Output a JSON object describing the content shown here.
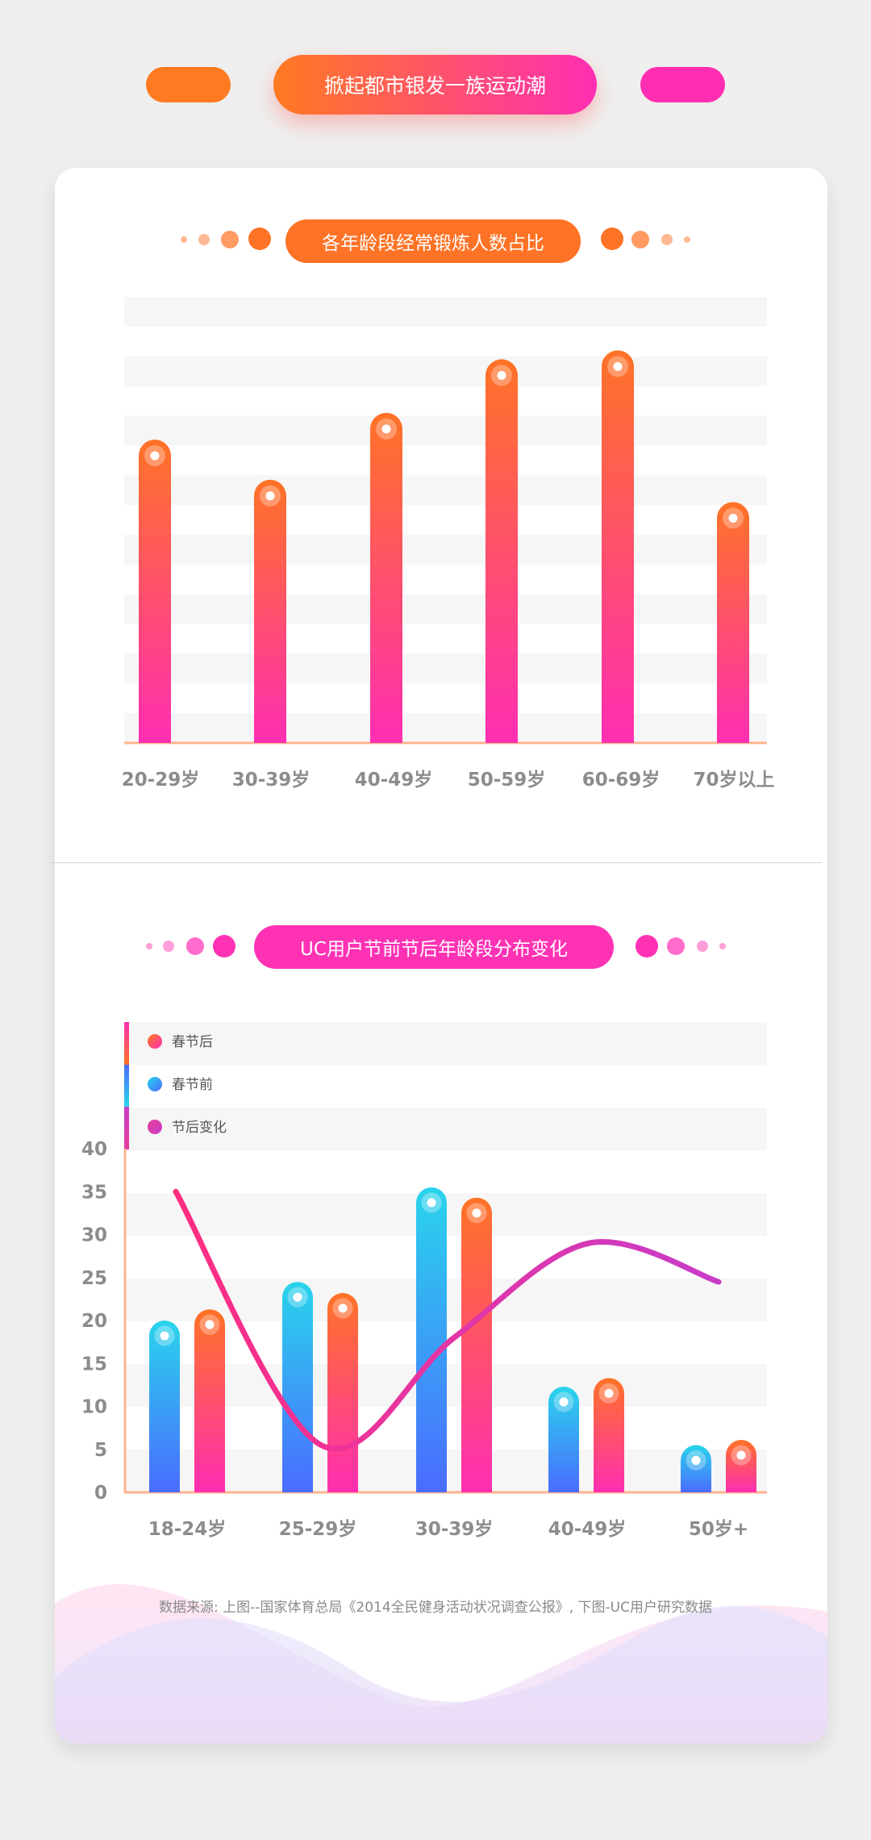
{
  "header": {
    "title": "掀起都市银发一族运动潮"
  },
  "colors": {
    "orange": "#ff7326",
    "pink": "#ff2eb2",
    "cyan": "#2ad4ec",
    "blue": "#4a6cff",
    "magenta": "#c83cc8"
  },
  "chart_data": [
    {
      "type": "bar",
      "title": "各年龄段经常锻炼人数占比",
      "categories": [
        "20-29岁",
        "30-39岁",
        "40-49岁",
        "50-59岁",
        "60-69岁",
        "70岁以上"
      ],
      "values": [
        68,
        59,
        74,
        86,
        88,
        54
      ],
      "ylim": [
        0,
        100
      ],
      "grid": "horizontal stripes"
    },
    {
      "type": "bar",
      "title": "UC用户节前节后年龄段分布变化",
      "categories": [
        "18-24岁",
        "25-29岁",
        "30-39岁",
        "40-49岁",
        "50岁+"
      ],
      "yticks": [
        "0",
        "5",
        "10",
        "15",
        "20",
        "25",
        "30",
        "35",
        "40"
      ],
      "ylim": [
        0,
        40
      ],
      "legend": {
        "placement": "top-left",
        "entries": [
          "春节后",
          "春节前",
          "节后变化"
        ]
      },
      "series": [
        {
          "name": "春节前",
          "values": [
            20,
            24.5,
            35.5,
            12.3,
            5.5
          ]
        },
        {
          "name": "春节后",
          "values": [
            21.3,
            23.2,
            34.3,
            13.3,
            6.1
          ]
        },
        {
          "name": "节后变化",
          "type": "line",
          "values": [
            35,
            5.5,
            18,
            29,
            24.5
          ]
        }
      ]
    }
  ],
  "footer": {
    "source": "数据来源: 上图--国家体育总局《2014全民健身活动状况调查公报》, 下图-UC用户研究数据"
  }
}
